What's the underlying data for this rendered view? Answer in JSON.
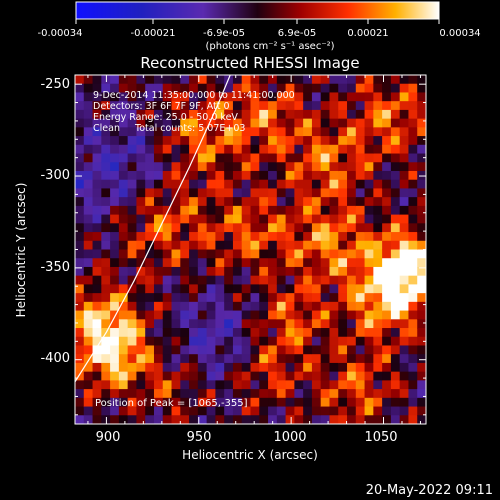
{
  "colorbar": {
    "ticks": [
      "-0.00034",
      "-0.00021",
      "-6.9e-05",
      "6.9e-05",
      "0.00021",
      "0.00034"
    ],
    "unit_label": "(photons cm⁻² s⁻¹ asec⁻²)"
  },
  "chart_data": {
    "type": "heatmap",
    "title": "Reconstructed RHESSI Image",
    "xlabel": "Heliocentric X (arcsec)",
    "ylabel": "Heliocentric Y (arcsec)",
    "xlim": [
      883,
      1073
    ],
    "ylim": [
      -435,
      -245
    ],
    "x_ticks": [
      900,
      950,
      1000,
      1050
    ],
    "y_ticks": [
      -250,
      -300,
      -350,
      -400
    ],
    "color_range": [
      -0.00034,
      0.00034
    ],
    "annotations": [
      "9-Dec-2014 11:35:00.000 to 11:41:00.000",
      "Detectors: 3F 6F 7F 9F, Att 0",
      "Energy Range: 25.0 - 50.0 keV",
      "Clean     Total counts: 5.07E+03"
    ],
    "peak_label": "Position of Peak = [1065,-355]",
    "peak": [
      1065,
      -355
    ],
    "limb_curve": [
      [
        883,
        -412
      ],
      [
        900,
        -385
      ],
      [
        915,
        -357
      ],
      [
        930,
        -326
      ],
      [
        945,
        -295
      ],
      [
        960,
        -262
      ],
      [
        967,
        -245
      ]
    ]
  },
  "footer_timestamp": "20-May-2022 09:11"
}
